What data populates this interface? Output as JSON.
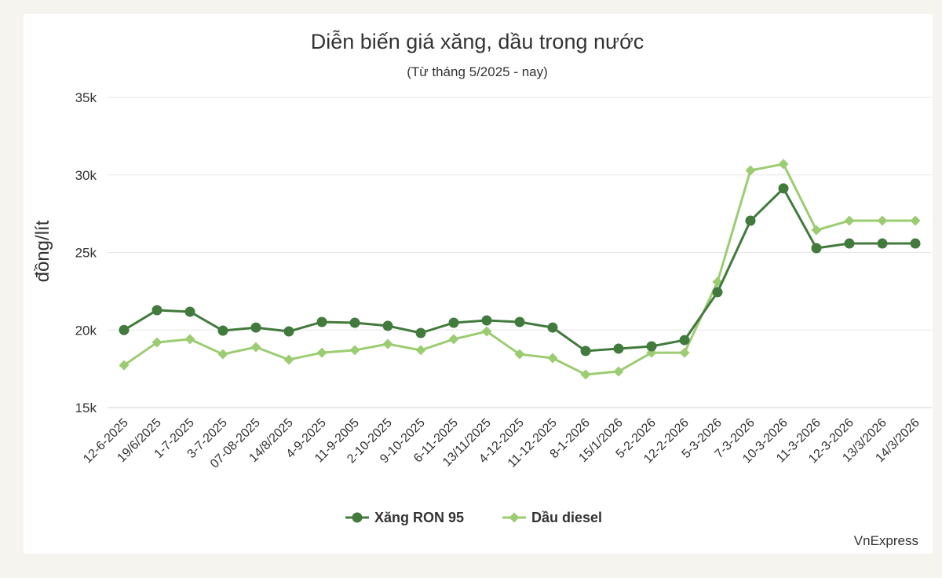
{
  "chart_data": {
    "type": "line",
    "title": "Diễn biến giá xăng, dầu trong nước",
    "subtitle": "(Từ tháng 5/2025 - nay)",
    "y_label": "đồng/lít",
    "source": "VnExpress",
    "categories": [
      "12-6-2025",
      "19/6/2025",
      "1-7-2025",
      "3-7-2025",
      "07-08-2025",
      "14/8/2025",
      "4-9-2025",
      "11-9-2005",
      "2-10-2025",
      "9-10-2025",
      "6-11-2025",
      "13/11/2025",
      "4-12-2025",
      "11-12-2025",
      "8-1-2026",
      "15/1/2026",
      "5-2-2026",
      "12-2-2026",
      "5-3-2026",
      "7-3-2026",
      "10-3-2026",
      "11-3-2026",
      "12-3-2026",
      "13/3/2026",
      "14/3/2026"
    ],
    "series": [
      {
        "name": "Xăng RON 95",
        "color": "#417a3c",
        "marker": "circle",
        "values": [
          20000,
          21280,
          21180,
          19960,
          20160,
          19910,
          20520,
          20470,
          20270,
          19810,
          20470,
          20620,
          20520,
          20160,
          18650,
          18800,
          18950,
          19350,
          22440,
          27050,
          29130,
          25280,
          25580,
          25580,
          25580
        ]
      },
      {
        "name": "Dầu diesel",
        "color": "#9ccc72",
        "marker": "diamond",
        "values": [
          17730,
          19200,
          19410,
          18440,
          18900,
          18090,
          18540,
          18700,
          19100,
          18700,
          19410,
          19910,
          18440,
          18190,
          17130,
          17330,
          18540,
          18540,
          23100,
          30290,
          30700,
          26440,
          27050,
          27050,
          27050
        ]
      }
    ],
    "ylim": [
      15000,
      35000
    ],
    "yticks": [
      {
        "value": 15000,
        "label": "15k"
      },
      {
        "value": 20000,
        "label": "20k"
      },
      {
        "value": 25000,
        "label": "25k"
      },
      {
        "value": 30000,
        "label": "30k"
      },
      {
        "value": 35000,
        "label": "35k"
      }
    ],
    "grid": true,
    "legend": "bottom"
  }
}
